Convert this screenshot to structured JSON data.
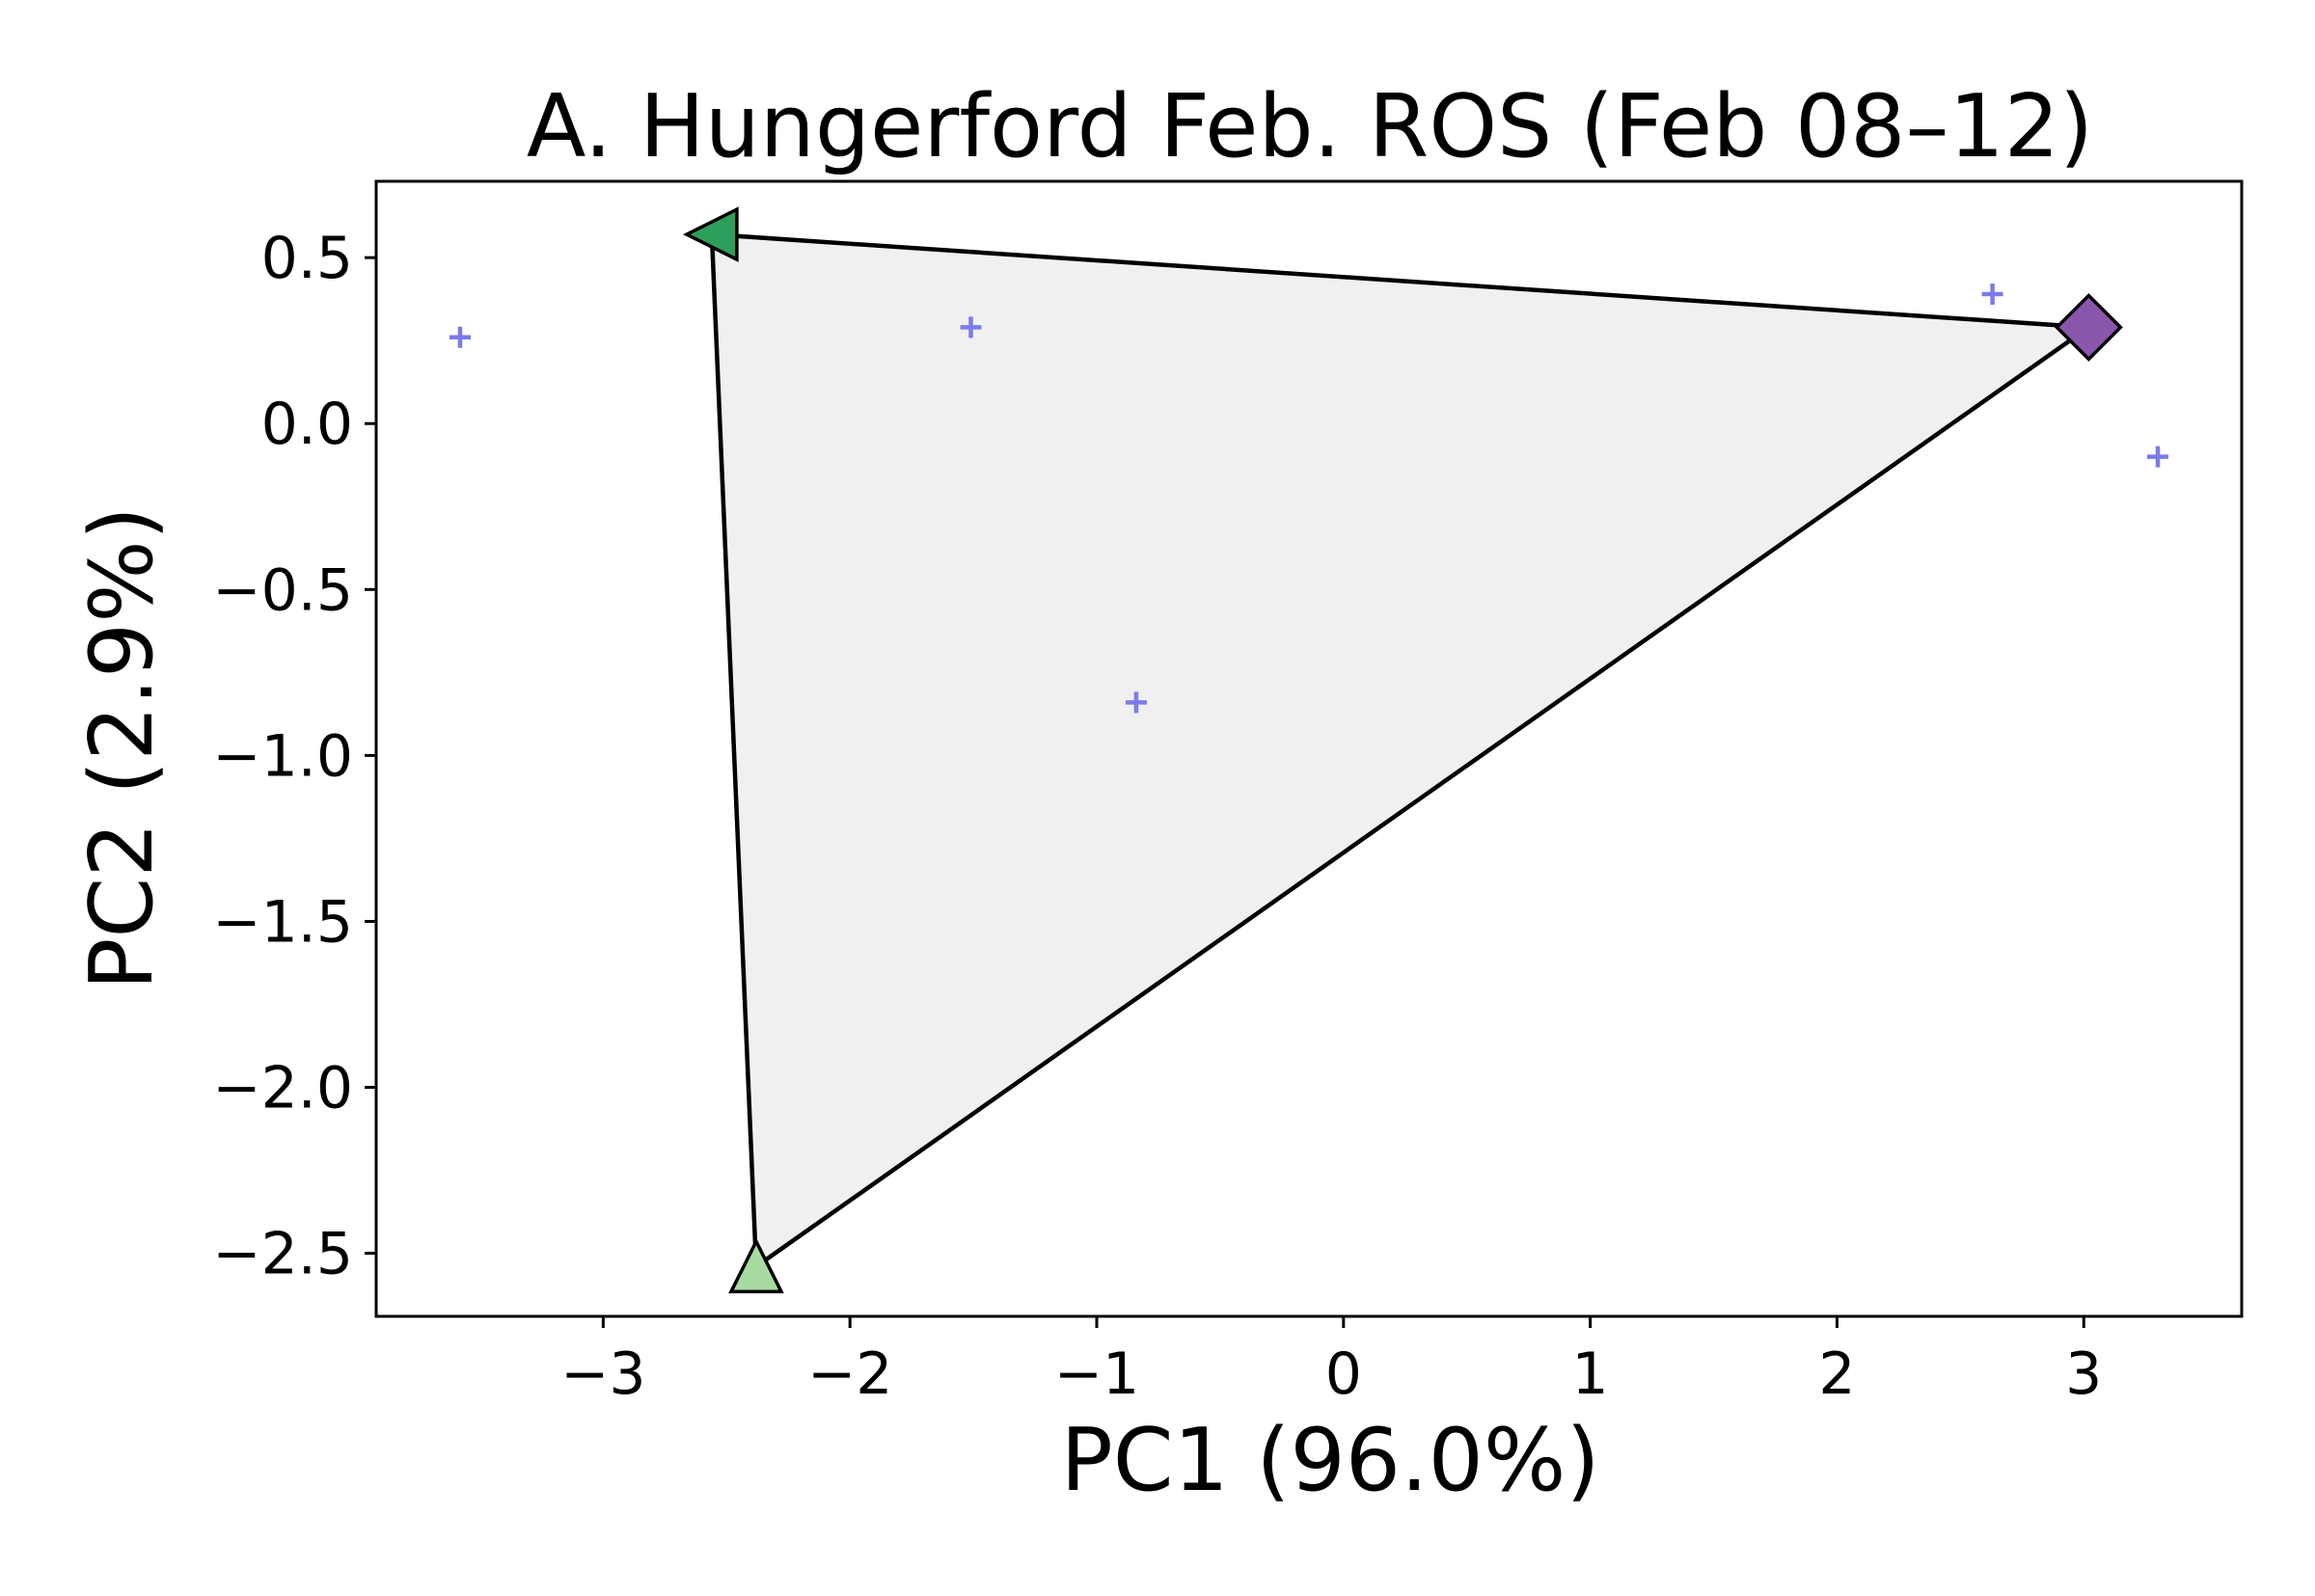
{
  "chart_data": {
    "type": "scatter",
    "title": "A. Hungerford Feb. ROS (Feb 08–12)",
    "xlabel": "PC1 (96.0%)",
    "ylabel": "PC2 (2.9%)",
    "xlim": [
      -3.92,
      3.64
    ],
    "ylim": [
      -2.69,
      0.73
    ],
    "x_ticks": [
      -3,
      -2,
      -1,
      0,
      1,
      2,
      3
    ],
    "x_tick_labels": [
      "−3",
      "−2",
      "−1",
      "0",
      "1",
      "2",
      "3"
    ],
    "y_ticks": [
      0.5,
      0.0,
      -0.5,
      -1.0,
      -1.5,
      -2.0,
      -2.5
    ],
    "y_tick_labels": [
      "0.5",
      "0.0",
      "−0.5",
      "−1.0",
      "−1.5",
      "−2.0",
      "−2.5"
    ],
    "grid": false,
    "legend": "none",
    "samples": [
      {
        "x": -3.58,
        "y": 0.26
      },
      {
        "x": -1.51,
        "y": 0.29
      },
      {
        "x": -0.84,
        "y": -0.84
      },
      {
        "x": 2.63,
        "y": 0.39
      },
      {
        "x": 3.3,
        "y": -0.1
      }
    ],
    "hull_vertices": [
      {
        "x": -2.56,
        "y": 0.57,
        "marker": "triangle-left",
        "color": "#2e9e5b"
      },
      {
        "x": 3.02,
        "y": 0.29,
        "marker": "diamond",
        "color": "#8a56ac"
      },
      {
        "x": -2.38,
        "y": -2.54,
        "marker": "triangle-up",
        "color": "#a8dba2"
      }
    ],
    "colors": {
      "sample": "#7b7bea",
      "hull_fill": "#f0f0f0",
      "hull_edge": "#000000"
    }
  }
}
